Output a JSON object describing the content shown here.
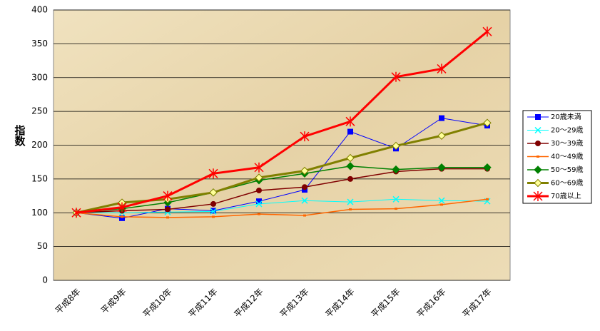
{
  "chart_data": {
    "type": "line",
    "y_label": "指数",
    "categories": [
      "平成8年",
      "平成9年",
      "平成10年",
      "平成11年",
      "平成12年",
      "平成13年",
      "平成14年",
      "平成15年",
      "平成16年",
      "平成17年"
    ],
    "series": [
      {
        "name": "20歳未満",
        "color": "#0000ff",
        "marker": "square",
        "width": 1,
        "values": [
          100,
          92,
          106,
          103,
          117,
          134,
          220,
          195,
          240,
          229
        ]
      },
      {
        "name": "20～29歳",
        "color": "#00ffff",
        "marker": "x",
        "width": 1,
        "values": [
          100,
          100,
          101,
          102,
          113,
          118,
          116,
          120,
          118,
          117
        ]
      },
      {
        "name": "30～39歳",
        "color": "#800000",
        "marker": "circle",
        "width": 1.5,
        "values": [
          100,
          103,
          105,
          113,
          133,
          138,
          150,
          161,
          165,
          165
        ]
      },
      {
        "name": "40～49歳",
        "color": "#ff6600",
        "marker": "dash",
        "width": 1.5,
        "values": [
          100,
          94,
          93,
          94,
          98,
          96,
          105,
          106,
          112,
          120
        ]
      },
      {
        "name": "50～59歳",
        "color": "#008000",
        "marker": "diamond",
        "width": 1.5,
        "values": [
          100,
          106,
          115,
          130,
          148,
          158,
          169,
          164,
          167,
          167
        ]
      },
      {
        "name": "60～69歳",
        "color": "#808000",
        "marker": "diamond-yellow",
        "width": 3,
        "values": [
          100,
          115,
          120,
          130,
          152,
          162,
          181,
          199,
          214,
          233
        ]
      },
      {
        "name": "70歳以上",
        "color": "#ff0000",
        "marker": "star",
        "width": 3,
        "values": [
          100,
          108,
          125,
          158,
          167,
          213,
          235,
          301,
          313,
          368
        ]
      }
    ],
    "ylim": [
      0,
      400
    ],
    "yticks": [
      0,
      50,
      100,
      150,
      200,
      250,
      300,
      350,
      400
    ],
    "grid": true,
    "legend": "right"
  }
}
